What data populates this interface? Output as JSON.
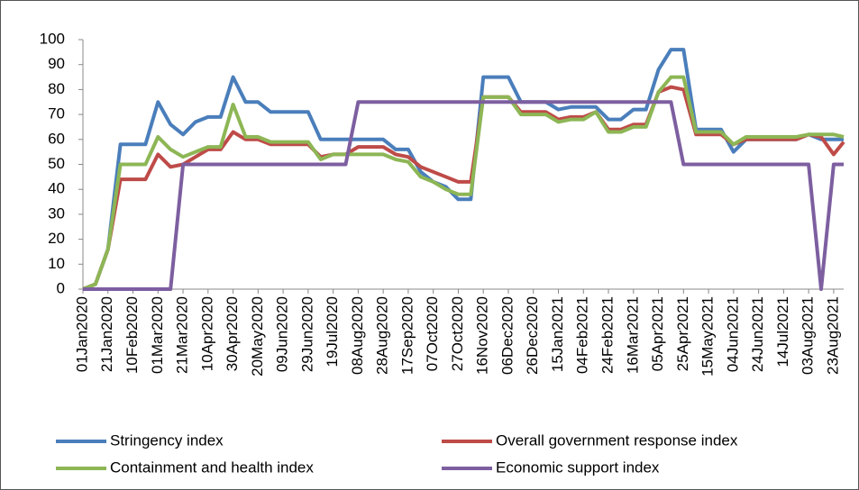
{
  "chart_data": {
    "type": "line",
    "x": [
      "2020-01-01",
      "2020-01-11",
      "2020-01-21",
      "2020-01-31",
      "2020-02-10",
      "2020-02-20",
      "2020-03-01",
      "2020-03-11",
      "2020-03-21",
      "2020-03-31",
      "2020-04-10",
      "2020-04-20",
      "2020-04-30",
      "2020-05-10",
      "2020-05-20",
      "2020-05-30",
      "2020-06-09",
      "2020-06-19",
      "2020-06-29",
      "2020-07-09",
      "2020-07-19",
      "2020-07-29",
      "2020-08-08",
      "2020-08-18",
      "2020-08-28",
      "2020-09-07",
      "2020-09-17",
      "2020-09-27",
      "2020-10-07",
      "2020-10-17",
      "2020-10-27",
      "2020-11-06",
      "2020-11-16",
      "2020-11-26",
      "2020-12-06",
      "2020-12-16",
      "2020-12-26",
      "2021-01-05",
      "2021-01-15",
      "2021-01-25",
      "2021-02-04",
      "2021-02-14",
      "2021-02-24",
      "2021-03-06",
      "2021-03-16",
      "2021-03-26",
      "2021-04-05",
      "2021-04-15",
      "2021-04-25",
      "2021-05-05",
      "2021-05-15",
      "2021-05-25",
      "2021-06-04",
      "2021-06-14",
      "2021-06-24",
      "2021-07-04",
      "2021-07-14",
      "2021-07-24",
      "2021-08-03",
      "2021-08-13",
      "2021-08-23",
      "2021-08-31"
    ],
    "series": [
      {
        "name": "Stringency index",
        "color": "#4a7ebb",
        "values": [
          0,
          2,
          16,
          58,
          58,
          58,
          75,
          66,
          62,
          67,
          69,
          69,
          85,
          75,
          75,
          71,
          71,
          71,
          71,
          60,
          60,
          60,
          60,
          60,
          60,
          56,
          56,
          47,
          43,
          41,
          36,
          36,
          85,
          85,
          85,
          75,
          75,
          75,
          72,
          73,
          73,
          73,
          68,
          68,
          72,
          72,
          88,
          96,
          96,
          64,
          64,
          64,
          55,
          60,
          60,
          60,
          60,
          60,
          62,
          60,
          60,
          60
        ]
      },
      {
        "name": "Overall government response index",
        "color": "#be4b48",
        "values": [
          0,
          2,
          16,
          44,
          44,
          44,
          54,
          49,
          50,
          53,
          56,
          56,
          63,
          60,
          60,
          58,
          58,
          58,
          58,
          53,
          54,
          54,
          57,
          57,
          57,
          54,
          53,
          49,
          47,
          45,
          43,
          43,
          77,
          77,
          77,
          71,
          71,
          71,
          68,
          69,
          69,
          71,
          64,
          64,
          66,
          66,
          79,
          81,
          80,
          62,
          62,
          62,
          58,
          60,
          60,
          60,
          60,
          60,
          62,
          61,
          54,
          59
        ]
      },
      {
        "name": "Containment and health index",
        "color": "#8db655",
        "values": [
          0,
          2,
          16,
          50,
          50,
          50,
          61,
          56,
          53,
          55,
          57,
          57,
          74,
          61,
          61,
          59,
          59,
          59,
          59,
          52,
          54,
          54,
          54,
          54,
          54,
          52,
          51,
          45,
          43,
          40,
          38,
          38,
          77,
          77,
          77,
          70,
          70,
          70,
          67,
          68,
          68,
          71,
          63,
          63,
          65,
          65,
          79,
          85,
          85,
          63,
          63,
          63,
          58,
          61,
          61,
          61,
          61,
          61,
          62,
          62,
          62,
          61
        ]
      },
      {
        "name": "Economic support index",
        "color": "#7d5fa0",
        "values": [
          0,
          0,
          0,
          0,
          0,
          0,
          0,
          0,
          50,
          50,
          50,
          50,
          50,
          50,
          50,
          50,
          50,
          50,
          50,
          50,
          50,
          50,
          75,
          75,
          75,
          75,
          75,
          75,
          75,
          75,
          75,
          75,
          75,
          75,
          75,
          75,
          75,
          75,
          75,
          75,
          75,
          75,
          75,
          75,
          75,
          75,
          75,
          75,
          50,
          50,
          50,
          50,
          50,
          50,
          50,
          50,
          50,
          50,
          50,
          0,
          50,
          50
        ]
      }
    ],
    "xlim": [
      "2020-01-01",
      "2021-08-31"
    ],
    "xticks": [
      {
        "value": "2020-01-01",
        "label": "01Jan2020"
      },
      {
        "value": "2020-01-21",
        "label": "21Jan2020"
      },
      {
        "value": "2020-02-10",
        "label": "10Feb2020"
      },
      {
        "value": "2020-03-01",
        "label": "01Mar2020"
      },
      {
        "value": "2020-03-21",
        "label": "21Mar2020"
      },
      {
        "value": "2020-04-10",
        "label": "10Apr2020"
      },
      {
        "value": "2020-04-30",
        "label": "30Apr2020"
      },
      {
        "value": "2020-05-20",
        "label": "20May2020"
      },
      {
        "value": "2020-06-09",
        "label": "09Jun2020"
      },
      {
        "value": "2020-06-29",
        "label": "29Jun2020"
      },
      {
        "value": "2020-07-19",
        "label": "19Jul2020"
      },
      {
        "value": "2020-08-08",
        "label": "08Aug2020"
      },
      {
        "value": "2020-08-28",
        "label": "28Aug2020"
      },
      {
        "value": "2020-09-17",
        "label": "17Sep2020"
      },
      {
        "value": "2020-10-07",
        "label": "07Oct2020"
      },
      {
        "value": "2020-10-27",
        "label": "27Oct2020"
      },
      {
        "value": "2020-11-16",
        "label": "16Nov2020"
      },
      {
        "value": "2020-12-06",
        "label": "06Dec2020"
      },
      {
        "value": "2020-12-26",
        "label": "26Dec2020"
      },
      {
        "value": "2021-01-15",
        "label": "15Jan2021"
      },
      {
        "value": "2021-02-04",
        "label": "04Feb2021"
      },
      {
        "value": "2021-02-24",
        "label": "24Feb2021"
      },
      {
        "value": "2021-03-16",
        "label": "16Mar2021"
      },
      {
        "value": "2021-04-05",
        "label": "05Apr2021"
      },
      {
        "value": "2021-04-25",
        "label": "25Apr2021"
      },
      {
        "value": "2021-05-15",
        "label": "15May2021"
      },
      {
        "value": "2021-06-04",
        "label": "04Jun2021"
      },
      {
        "value": "2021-06-24",
        "label": "24Jun2021"
      },
      {
        "value": "2021-07-14",
        "label": "14Jul2021"
      },
      {
        "value": "2021-08-03",
        "label": "03Aug2021"
      },
      {
        "value": "2021-08-23",
        "label": "23Aug2021"
      }
    ],
    "ylim": [
      0,
      100
    ],
    "yticks": [
      0,
      10,
      20,
      30,
      40,
      50,
      60,
      70,
      80,
      90,
      100
    ],
    "grid": false
  }
}
